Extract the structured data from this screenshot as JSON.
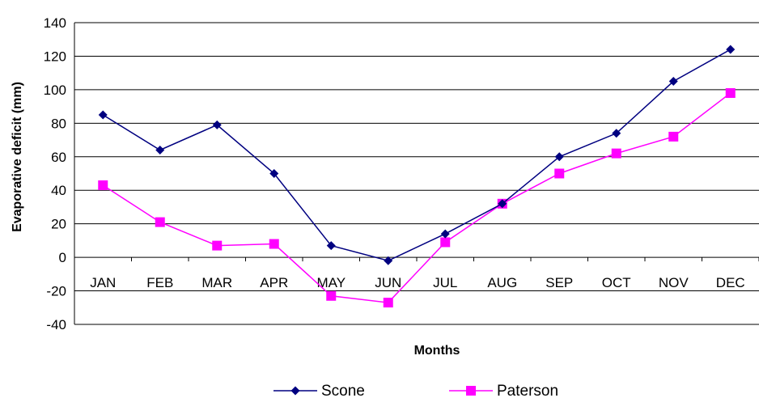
{
  "chart_data": {
    "type": "line",
    "categories": [
      "JAN",
      "FEB",
      "MAR",
      "APR",
      "MAY",
      "JUN",
      "JUL",
      "AUG",
      "SEP",
      "OCT",
      "NOV",
      "DEC"
    ],
    "series": [
      {
        "name": "Scone",
        "color": "#000080",
        "marker": "diamond",
        "values": [
          85,
          64,
          79,
          50,
          7,
          -2,
          14,
          32,
          60,
          74,
          105,
          124
        ]
      },
      {
        "name": "Paterson",
        "color": "#FF00FF",
        "marker": "square",
        "values": [
          43,
          21,
          7,
          8,
          -23,
          -27,
          9,
          32,
          50,
          62,
          72,
          98
        ]
      }
    ],
    "xlabel": "Months",
    "ylabel": "Evaporative deficit (mm)",
    "ylim": [
      -40,
      140
    ],
    "yticks": [
      -40,
      -20,
      0,
      20,
      40,
      60,
      80,
      100,
      120,
      140
    ],
    "grid": true,
    "legend_position": "bottom"
  }
}
